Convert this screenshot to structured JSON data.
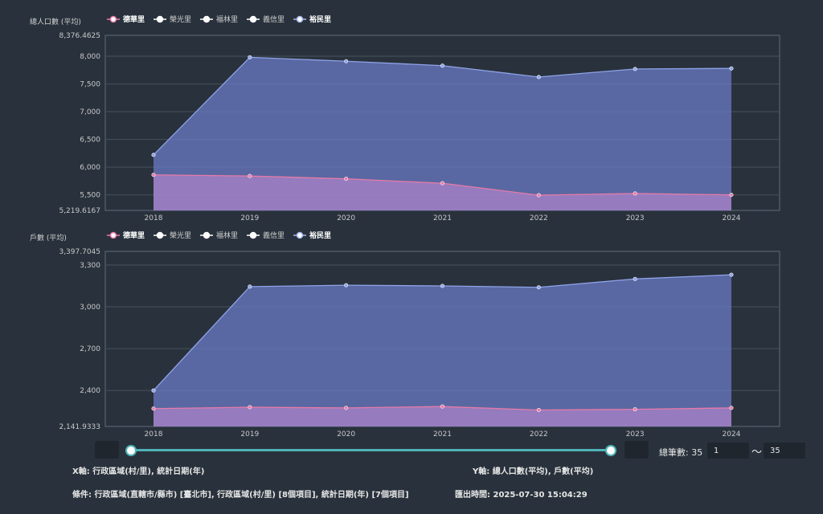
{
  "legend": [
    "德華里",
    "榮光里",
    "福林里",
    "義信里",
    "裕民里"
  ],
  "legend_colors": [
    "#e87aa8",
    "#ffffff",
    "#ffffff",
    "#ffffff",
    "#a8b8f0"
  ],
  "chart_data": [
    {
      "type": "area",
      "ylabel": "總人口數 (平均)",
      "ylim": [
        5219.6167,
        8376.4625
      ],
      "yticks": [
        "5,219.6167",
        "5,500",
        "6,000",
        "6,500",
        "7,000",
        "7,500",
        "8,000",
        "8,376.4625"
      ],
      "ytick_values": [
        5219.6167,
        5500,
        6000,
        6500,
        7000,
        7500,
        8000,
        8376.4625
      ],
      "x": [
        "2018",
        "2019",
        "2020",
        "2021",
        "2022",
        "2023",
        "2024"
      ],
      "series": [
        {
          "name": "裕民里",
          "values": [
            6220,
            7980,
            7910,
            7830,
            7625,
            7770,
            7780
          ]
        },
        {
          "name": "德華里",
          "values": [
            5860,
            5840,
            5790,
            5710,
            5495,
            5525,
            5500
          ]
        }
      ]
    },
    {
      "type": "area",
      "ylabel": "戶數 (平均)",
      "ylim": [
        2141.9333,
        3397.7045
      ],
      "yticks": [
        "2,141.9333",
        "2,400",
        "2,700",
        "3,000",
        "3,300",
        "3,397.7045"
      ],
      "ytick_values": [
        2141.9333,
        2400,
        2700,
        3000,
        3300,
        3397.7045
      ],
      "x": [
        "2018",
        "2019",
        "2020",
        "2021",
        "2022",
        "2023",
        "2024"
      ],
      "series": [
        {
          "name": "裕民里",
          "values": [
            2400,
            3145,
            3155,
            3150,
            3140,
            3200,
            3230
          ]
        },
        {
          "name": "德華里",
          "values": [
            2270,
            2280,
            2275,
            2285,
            2260,
            2265,
            2275
          ]
        }
      ]
    }
  ],
  "controls": {
    "count_label": "總筆數: 35",
    "range_from": "1",
    "range_to": "35",
    "tilde": "～"
  },
  "info": {
    "x_axis": "X軸:  行政區域(村/里), 統計日期(年)",
    "y_axis": "Y軸:  總人口數(平均), 戶數(平均)",
    "condition": "條件:  行政區域(直轄市/縣市) [臺北市], 行政區域(村/里) [8個項目], 統計日期(年) [7個項目]",
    "export_time": "匯出時間:  2025-07-30 15:04:29"
  }
}
